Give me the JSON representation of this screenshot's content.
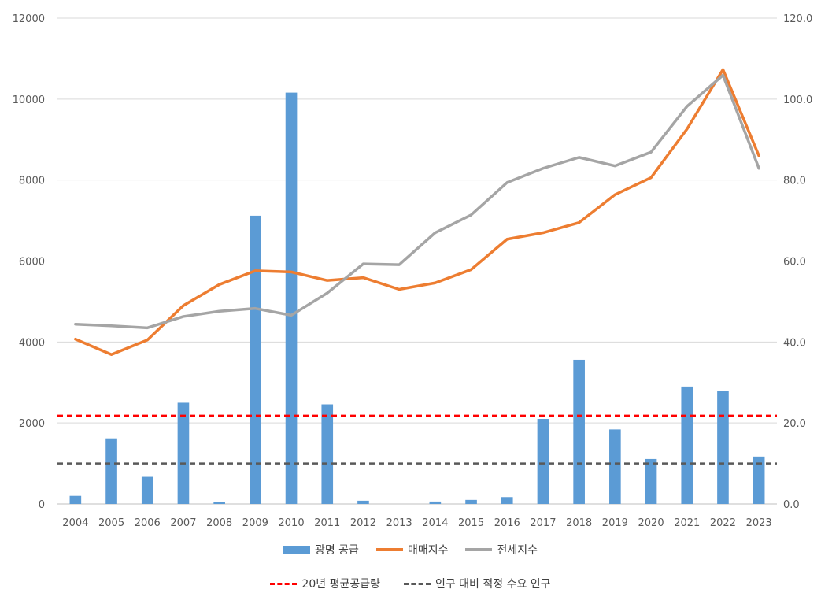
{
  "chart_data": {
    "type": "bar+line",
    "categories": [
      "2004",
      "2005",
      "2006",
      "2007",
      "2008",
      "2009",
      "2010",
      "2011",
      "2012",
      "2013",
      "2014",
      "2015",
      "2016",
      "2017",
      "2018",
      "2019",
      "2020",
      "2021",
      "2022",
      "2023"
    ],
    "bars": {
      "name": "광명 공급",
      "axis": "left",
      "color": "#5b9bd5",
      "values": [
        200,
        1620,
        670,
        2500,
        50,
        7120,
        10160,
        2460,
        80,
        0,
        60,
        100,
        170,
        2100,
        3560,
        1840,
        1110,
        2900,
        2790,
        1170
      ]
    },
    "lines": [
      {
        "name": "매매지수",
        "axis": "right",
        "color": "#ed7d31",
        "values": [
          40.7,
          36.9,
          40.5,
          49.0,
          54.2,
          57.6,
          57.3,
          55.2,
          55.9,
          53.0,
          54.6,
          57.9,
          65.4,
          67.0,
          69.5,
          76.4,
          80.6,
          92.6,
          107.3,
          86.0
        ]
      },
      {
        "name": "전세지수",
        "axis": "right",
        "color": "#a5a5a5",
        "values": [
          44.4,
          44.0,
          43.5,
          46.3,
          47.6,
          48.3,
          46.6,
          52.1,
          59.3,
          59.1,
          67.0,
          71.4,
          79.4,
          82.9,
          85.6,
          83.5,
          86.9,
          98.2,
          105.9,
          82.9
        ]
      }
    ],
    "reference_lines": [
      {
        "name": "20년 평균공급량",
        "axis": "left",
        "value": 2180,
        "color": "#ff0000",
        "style": "dashed"
      },
      {
        "name": "인구 대비 적정 수요 인구",
        "axis": "left",
        "value": 1000,
        "color": "#595959",
        "style": "dashed"
      }
    ],
    "left_axis": {
      "min": 0,
      "max": 12000,
      "ticks": [
        "0",
        "2000",
        "4000",
        "6000",
        "8000",
        "10000",
        "12000"
      ]
    },
    "right_axis": {
      "min": 0,
      "max": 120,
      "ticks": [
        "0.0",
        "20.0",
        "40.0",
        "60.0",
        "80.0",
        "100.0",
        "120.0"
      ]
    },
    "grid": true,
    "legend_position": "bottom"
  },
  "legend": {
    "row1": [
      {
        "label": "광명 공급",
        "color": "#5b9bd5",
        "kind": "bar"
      },
      {
        "label": "매매지수",
        "color": "#ed7d31",
        "kind": "line"
      },
      {
        "label": "전세지수",
        "color": "#a5a5a5",
        "kind": "line"
      }
    ],
    "row2": [
      {
        "label": "20년 평균공급량",
        "color": "#ff0000",
        "kind": "dash"
      },
      {
        "label": "인구 대비 적정 수요 인구",
        "color": "#595959",
        "kind": "dash"
      }
    ]
  }
}
